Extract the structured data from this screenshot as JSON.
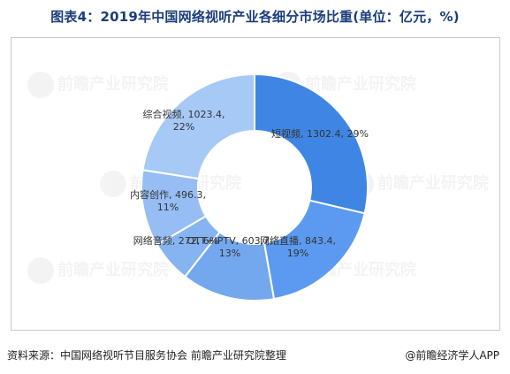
{
  "title": "图表4：2019年中国网络视听产业各细分市场比重(单位：亿元，%)",
  "footer": {
    "source": "资料来源：中国网络视听节目服务协会 前瞻产业研究院整理",
    "brand": "@前瞻经济学人APP"
  },
  "watermark": {
    "text": "前瞻产业研究院"
  },
  "chart_data": {
    "type": "pie",
    "variant": "donut",
    "title": "图表4：2019年中国网络视听产业各细分市场比重(单位：亿元，%)",
    "unit": "亿元",
    "categories": [
      "短视频",
      "网络直播",
      "OTT+IPTV",
      "网络音频",
      "内容创作",
      "综合视频"
    ],
    "values": [
      1302.4,
      843.4,
      603.7,
      272,
      496.3,
      1023.4
    ],
    "percents": [
      29,
      19,
      13,
      6,
      11,
      22
    ],
    "labels": [
      [
        "短视频, 1302.4, 29%"
      ],
      [
        "网络直播, 843.4,",
        "19%"
      ],
      [
        "OTT+IPTV, 603.7,",
        "13%"
      ],
      [
        "网络音频, 272, 6%"
      ],
      [
        "内容创作, 496.3,",
        "11%"
      ],
      [
        "综合视频, 1023.4,",
        "22%"
      ]
    ],
    "colors": [
      "#3f86e4",
      "#5b9af0",
      "#73a8ee",
      "#86b4f1",
      "#96bef4",
      "#a6c9f6"
    ],
    "legend": "none"
  }
}
